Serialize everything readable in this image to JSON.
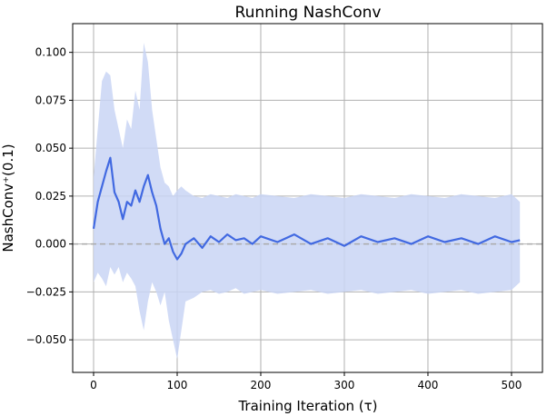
{
  "chart_data": {
    "type": "line",
    "title": "Running NashConv",
    "xlabel": "Training Iteration (τ)",
    "ylabel": "NashConv⁺(0.1)",
    "xlim": [
      -25,
      537
    ],
    "ylim": [
      -0.067,
      0.115
    ],
    "xticks": [
      0,
      100,
      200,
      300,
      400,
      500
    ],
    "yticks": [
      -0.05,
      -0.025,
      0.0,
      0.025,
      0.05,
      0.075,
      0.1
    ],
    "xtick_labels": [
      "0",
      "100",
      "200",
      "300",
      "400",
      "500"
    ],
    "ytick_labels": [
      "−0.050",
      "−0.025",
      "0.000",
      "0.025",
      "0.050",
      "0.075",
      "0.100"
    ],
    "grid": true,
    "reference_line": {
      "y": 0.0,
      "style": "dashed",
      "color": "#aaaaaa"
    },
    "colors": {
      "mean": "#4169e1",
      "band": "#c9d5f5"
    },
    "series": [
      {
        "role": "mean",
        "x": [
          0,
          5,
          10,
          15,
          20,
          25,
          30,
          35,
          40,
          45,
          50,
          55,
          60,
          65,
          70,
          75,
          80,
          85,
          90,
          95,
          100,
          105,
          110,
          120,
          130,
          140,
          150,
          160,
          170,
          180,
          190,
          200,
          220,
          240,
          260,
          280,
          300,
          320,
          340,
          360,
          380,
          400,
          420,
          440,
          460,
          480,
          500,
          510
        ],
        "y": [
          0.008,
          0.022,
          0.03,
          0.038,
          0.045,
          0.027,
          0.022,
          0.013,
          0.022,
          0.02,
          0.028,
          0.022,
          0.03,
          0.036,
          0.027,
          0.02,
          0.008,
          0.0,
          0.003,
          -0.004,
          -0.008,
          -0.005,
          0.0,
          0.003,
          -0.002,
          0.004,
          0.001,
          0.005,
          0.002,
          0.003,
          0.0,
          0.004,
          0.001,
          0.005,
          0.0,
          0.003,
          -0.001,
          0.004,
          0.001,
          0.003,
          0.0,
          0.004,
          0.001,
          0.003,
          0.0,
          0.004,
          0.001,
          0.002
        ]
      },
      {
        "role": "band",
        "x": [
          0,
          5,
          10,
          15,
          20,
          25,
          30,
          35,
          40,
          45,
          50,
          55,
          60,
          65,
          70,
          75,
          80,
          85,
          90,
          95,
          100,
          105,
          110,
          120,
          130,
          140,
          150,
          160,
          170,
          180,
          190,
          200,
          220,
          240,
          260,
          280,
          300,
          320,
          340,
          360,
          380,
          400,
          420,
          440,
          460,
          480,
          500,
          510
        ],
        "upper": [
          0.035,
          0.06,
          0.085,
          0.09,
          0.088,
          0.07,
          0.06,
          0.05,
          0.065,
          0.06,
          0.08,
          0.07,
          0.105,
          0.095,
          0.07,
          0.055,
          0.04,
          0.032,
          0.03,
          0.025,
          0.028,
          0.03,
          0.028,
          0.025,
          0.024,
          0.026,
          0.025,
          0.024,
          0.026,
          0.025,
          0.024,
          0.026,
          0.025,
          0.024,
          0.026,
          0.025,
          0.024,
          0.026,
          0.025,
          0.024,
          0.026,
          0.025,
          0.024,
          0.026,
          0.025,
          0.024,
          0.026,
          0.022
        ],
        "lower": [
          -0.02,
          -0.015,
          -0.018,
          -0.022,
          -0.012,
          -0.016,
          -0.012,
          -0.02,
          -0.015,
          -0.018,
          -0.022,
          -0.035,
          -0.045,
          -0.03,
          -0.02,
          -0.025,
          -0.032,
          -0.025,
          -0.04,
          -0.05,
          -0.06,
          -0.045,
          -0.03,
          -0.028,
          -0.025,
          -0.024,
          -0.026,
          -0.025,
          -0.023,
          -0.026,
          -0.025,
          -0.024,
          -0.026,
          -0.025,
          -0.024,
          -0.026,
          -0.025,
          -0.024,
          -0.026,
          -0.025,
          -0.024,
          -0.026,
          -0.025,
          -0.024,
          -0.026,
          -0.025,
          -0.024,
          -0.02
        ]
      }
    ]
  }
}
